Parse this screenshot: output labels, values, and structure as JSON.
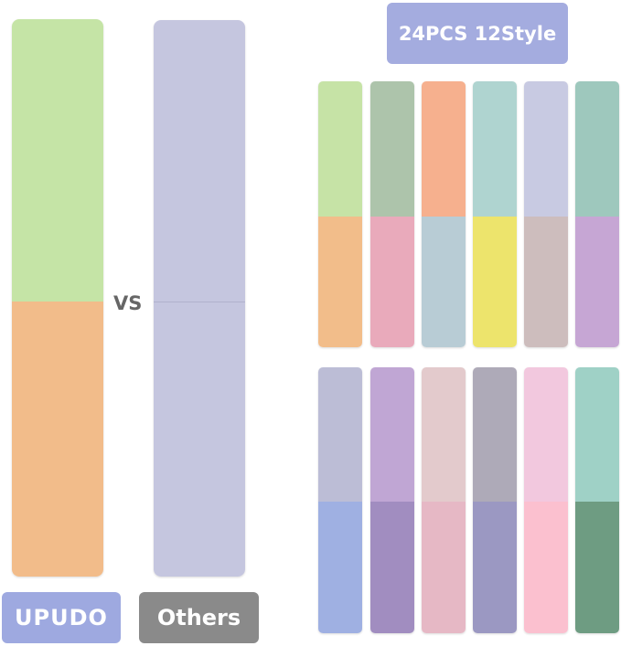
{
  "title": "24PCS 12Style",
  "vs": "VS",
  "brand_label": "UPUDO",
  "others_label": "Others",
  "colors": {
    "title_bg": "#a4acdf",
    "brand_bg": "#9ea9e0",
    "others_bg": "#8a8a8a"
  },
  "upudo_strip": {
    "top": "#c5e4a6",
    "bottom": "#f2bc8a"
  },
  "others_strip": {
    "top": "#c5c6df",
    "bottom": "#c5c6df"
  },
  "row1": [
    {
      "top": "#c6e3a6",
      "bottom": "#f2bd8a"
    },
    {
      "top": "#adc4ab",
      "bottom": "#e9aabb"
    },
    {
      "top": "#f6b08e",
      "bottom": "#b8ccd5"
    },
    {
      "top": "#afd4d0",
      "bottom": "#ede46c"
    },
    {
      "top": "#c8cae2",
      "bottom": "#cdbdbd"
    },
    {
      "top": "#9ec8bd",
      "bottom": "#c6a6d4"
    }
  ],
  "row2": [
    {
      "top": "#bcbdd6",
      "bottom": "#9fb0e2"
    },
    {
      "top": "#c0a6d4",
      "bottom": "#a18dc0"
    },
    {
      "top": "#e3cacc",
      "bottom": "#e6b8c5"
    },
    {
      "top": "#aeaab8",
      "bottom": "#9b98c2"
    },
    {
      "top": "#f2c8de",
      "bottom": "#fbc0cf"
    },
    {
      "top": "#9fd1c6",
      "bottom": "#6e9c82"
    }
  ]
}
